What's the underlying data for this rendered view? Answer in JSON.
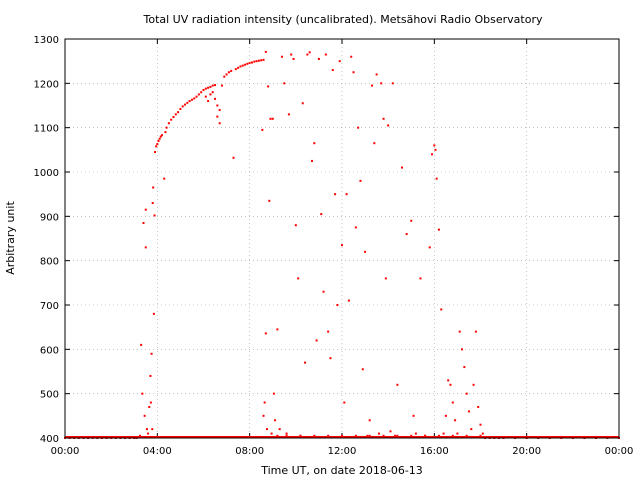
{
  "chart_data": {
    "type": "scatter",
    "title": "Total UV radiation intensity (uncalibrated). Metsähovi Radio Observatory",
    "xlabel": "Time UT, on date 2018-06-13",
    "ylabel": "Arbitrary unit",
    "xlim": [
      0,
      24
    ],
    "ylim": [
      400,
      1300
    ],
    "grid": true,
    "x_ticks": [
      {
        "value": 0,
        "label": "00:00"
      },
      {
        "value": 4,
        "label": "04:00"
      },
      {
        "value": 8,
        "label": "08:00"
      },
      {
        "value": 12,
        "label": "12:00"
      },
      {
        "value": 16,
        "label": "16:00"
      },
      {
        "value": 20,
        "label": "20:00"
      },
      {
        "value": 24,
        "label": "00:00"
      }
    ],
    "y_ticks": [
      400,
      500,
      600,
      700,
      800,
      900,
      1000,
      1100,
      1200,
      1300
    ],
    "series": [
      {
        "color": "#ff0000",
        "points": [
          [
            0.0,
            400
          ],
          [
            0.2,
            400
          ],
          [
            0.4,
            400
          ],
          [
            0.6,
            400
          ],
          [
            0.8,
            400
          ],
          [
            1.0,
            400
          ],
          [
            1.2,
            400
          ],
          [
            1.4,
            400
          ],
          [
            1.6,
            400
          ],
          [
            1.8,
            400
          ],
          [
            2.0,
            400
          ],
          [
            2.2,
            400
          ],
          [
            2.4,
            400
          ],
          [
            2.6,
            400
          ],
          [
            2.8,
            400
          ],
          [
            3.0,
            400
          ],
          [
            3.1,
            400
          ],
          [
            3.2,
            402
          ],
          [
            3.25,
            405
          ],
          [
            3.3,
            610
          ],
          [
            3.35,
            500
          ],
          [
            3.4,
            885
          ],
          [
            3.45,
            450
          ],
          [
            3.5,
            830
          ],
          [
            3.5,
            915
          ],
          [
            3.55,
            420
          ],
          [
            3.6,
            410
          ],
          [
            3.65,
            470
          ],
          [
            3.7,
            540
          ],
          [
            3.72,
            480
          ],
          [
            3.75,
            590
          ],
          [
            3.78,
            420
          ],
          [
            3.8,
            930
          ],
          [
            3.82,
            965
          ],
          [
            3.85,
            680
          ],
          [
            3.88,
            902
          ],
          [
            3.9,
            1045
          ],
          [
            3.95,
            1058
          ],
          [
            4.0,
            1063
          ],
          [
            4.05,
            1070
          ],
          [
            4.1,
            1075
          ],
          [
            4.15,
            1080
          ],
          [
            4.2,
            1083
          ],
          [
            4.3,
            985
          ],
          [
            4.35,
            1090
          ],
          [
            4.4,
            1100
          ],
          [
            4.5,
            1110
          ],
          [
            4.6,
            1118
          ],
          [
            4.7,
            1124
          ],
          [
            4.8,
            1130
          ],
          [
            4.9,
            1135
          ],
          [
            5.0,
            1142
          ],
          [
            5.1,
            1148
          ],
          [
            5.2,
            1152
          ],
          [
            5.3,
            1156
          ],
          [
            5.4,
            1160
          ],
          [
            5.5,
            1163
          ],
          [
            5.6,
            1166
          ],
          [
            5.7,
            1170
          ],
          [
            5.8,
            1175
          ],
          [
            5.9,
            1180
          ],
          [
            6.0,
            1185
          ],
          [
            6.1,
            1188
          ],
          [
            6.2,
            1190
          ],
          [
            6.3,
            1192
          ],
          [
            6.4,
            1195
          ],
          [
            6.5,
            1196
          ],
          [
            6.1,
            1170
          ],
          [
            6.2,
            1160
          ],
          [
            6.3,
            1175
          ],
          [
            6.4,
            1180
          ],
          [
            6.5,
            1165
          ],
          [
            6.6,
            1150
          ],
          [
            6.7,
            1140
          ],
          [
            6.6,
            1125
          ],
          [
            6.7,
            1110
          ],
          [
            6.8,
            1195
          ],
          [
            6.9,
            1215
          ],
          [
            7.0,
            1220
          ],
          [
            7.1,
            1225
          ],
          [
            7.2,
            1228
          ],
          [
            7.3,
            1032
          ],
          [
            7.4,
            1232
          ],
          [
            7.5,
            1235
          ],
          [
            7.6,
            1238
          ],
          [
            7.7,
            1240
          ],
          [
            7.8,
            1242
          ],
          [
            7.9,
            1244
          ],
          [
            8.0,
            1246
          ],
          [
            8.1,
            1247
          ],
          [
            8.2,
            1249
          ],
          [
            8.3,
            1250
          ],
          [
            8.4,
            1251
          ],
          [
            8.5,
            1252
          ],
          [
            8.55,
            1095
          ],
          [
            8.6,
            1253
          ],
          [
            8.7,
            1271
          ],
          [
            8.6,
            450
          ],
          [
            8.65,
            480
          ],
          [
            8.7,
            636
          ],
          [
            8.75,
            420
          ],
          [
            8.8,
            1193
          ],
          [
            8.85,
            935
          ],
          [
            8.9,
            1120
          ],
          [
            8.95,
            410
          ],
          [
            9.0,
            1120
          ],
          [
            9.05,
            500
          ],
          [
            9.1,
            440
          ],
          [
            9.2,
            645
          ],
          [
            9.3,
            420
          ],
          [
            9.4,
            1260
          ],
          [
            9.5,
            1200
          ],
          [
            9.6,
            410
          ],
          [
            9.7,
            1130
          ],
          [
            9.8,
            1265
          ],
          [
            9.9,
            1255
          ],
          [
            10.0,
            880
          ],
          [
            10.1,
            760
          ],
          [
            10.2,
            405
          ],
          [
            10.3,
            1155
          ],
          [
            10.4,
            570
          ],
          [
            10.5,
            1265
          ],
          [
            10.6,
            1270
          ],
          [
            10.7,
            1025
          ],
          [
            10.8,
            1065
          ],
          [
            10.9,
            620
          ],
          [
            11.0,
            1255
          ],
          [
            11.1,
            905
          ],
          [
            11.2,
            730
          ],
          [
            11.3,
            1265
          ],
          [
            11.4,
            640
          ],
          [
            11.5,
            580
          ],
          [
            11.6,
            1230
          ],
          [
            11.7,
            950
          ],
          [
            11.8,
            700
          ],
          [
            11.9,
            1250
          ],
          [
            12.0,
            835
          ],
          [
            12.1,
            480
          ],
          [
            12.2,
            950
          ],
          [
            12.3,
            710
          ],
          [
            12.4,
            1260
          ],
          [
            12.5,
            1225
          ],
          [
            12.6,
            875
          ],
          [
            12.7,
            1100
          ],
          [
            12.8,
            980
          ],
          [
            12.9,
            555
          ],
          [
            13.0,
            820
          ],
          [
            13.1,
            405
          ],
          [
            13.2,
            440
          ],
          [
            13.3,
            1195
          ],
          [
            13.4,
            1065
          ],
          [
            13.5,
            1220
          ],
          [
            13.6,
            410
          ],
          [
            13.7,
            1200
          ],
          [
            13.8,
            1120
          ],
          [
            13.9,
            760
          ],
          [
            14.0,
            1105
          ],
          [
            14.1,
            415
          ],
          [
            14.2,
            1200
          ],
          [
            14.3,
            405
          ],
          [
            14.4,
            520
          ],
          [
            14.6,
            1010
          ],
          [
            14.8,
            860
          ],
          [
            15.0,
            890
          ],
          [
            15.1,
            450
          ],
          [
            15.2,
            410
          ],
          [
            15.4,
            760
          ],
          [
            15.6,
            405
          ],
          [
            15.8,
            830
          ],
          [
            15.9,
            1040
          ],
          [
            16.0,
            1060
          ],
          [
            16.05,
            1050
          ],
          [
            16.1,
            985
          ],
          [
            16.2,
            870
          ],
          [
            16.3,
            690
          ],
          [
            16.4,
            410
          ],
          [
            16.5,
            450
          ],
          [
            16.6,
            530
          ],
          [
            16.7,
            520
          ],
          [
            16.8,
            480
          ],
          [
            16.9,
            440
          ],
          [
            17.0,
            410
          ],
          [
            17.1,
            640
          ],
          [
            17.2,
            600
          ],
          [
            17.3,
            560
          ],
          [
            17.4,
            500
          ],
          [
            17.5,
            460
          ],
          [
            17.6,
            420
          ],
          [
            17.7,
            520
          ],
          [
            17.8,
            640
          ],
          [
            17.9,
            470
          ],
          [
            18.0,
            430
          ],
          [
            18.1,
            410
          ],
          [
            18.2,
            400
          ],
          [
            18.4,
            400
          ],
          [
            18.6,
            400
          ],
          [
            18.8,
            400
          ],
          [
            19.0,
            400
          ],
          [
            19.5,
            400
          ],
          [
            20.0,
            400
          ],
          [
            20.5,
            400
          ],
          [
            21.0,
            400
          ],
          [
            21.5,
            400
          ],
          [
            22.0,
            400
          ],
          [
            22.5,
            400
          ],
          [
            23.0,
            400
          ],
          [
            23.5,
            400
          ],
          [
            24.0,
            400
          ],
          [
            9.2,
            405
          ],
          [
            9.6,
            405
          ],
          [
            10.2,
            405
          ],
          [
            10.8,
            405
          ],
          [
            11.4,
            405
          ],
          [
            12.0,
            405
          ],
          [
            12.6,
            405
          ],
          [
            13.2,
            405
          ],
          [
            13.8,
            405
          ],
          [
            14.4,
            405
          ],
          [
            15.0,
            405
          ],
          [
            15.6,
            405
          ],
          [
            16.2,
            405
          ],
          [
            16.8,
            405
          ],
          [
            17.4,
            405
          ],
          [
            18.0,
            405
          ]
        ]
      }
    ]
  }
}
